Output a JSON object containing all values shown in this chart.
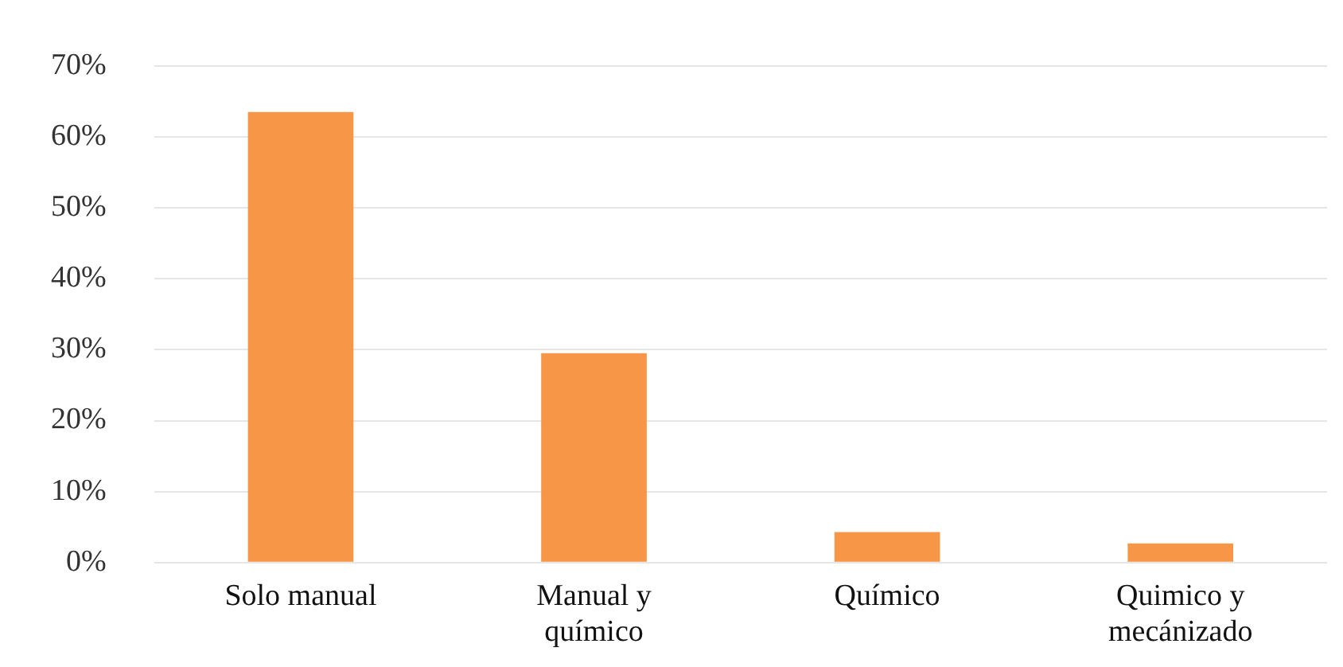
{
  "chart_data": {
    "type": "bar",
    "categories": [
      "Solo manual",
      "Manual y químico",
      "Químico",
      "Quimico y mecánizado"
    ],
    "values": [
      63.5,
      29.5,
      4.3,
      2.7
    ],
    "color": "#f79646",
    "ylim": [
      0,
      70
    ],
    "yticks": [
      {
        "value": 0,
        "label": "0%"
      },
      {
        "value": 10,
        "label": "10%"
      },
      {
        "value": 20,
        "label": "20%"
      },
      {
        "value": 30,
        "label": "30%"
      },
      {
        "value": 40,
        "label": "40%"
      },
      {
        "value": 50,
        "label": "50%"
      },
      {
        "value": 60,
        "label": "60%"
      },
      {
        "value": 70,
        "label": "70%"
      }
    ],
    "grid": "y",
    "legend": false
  }
}
